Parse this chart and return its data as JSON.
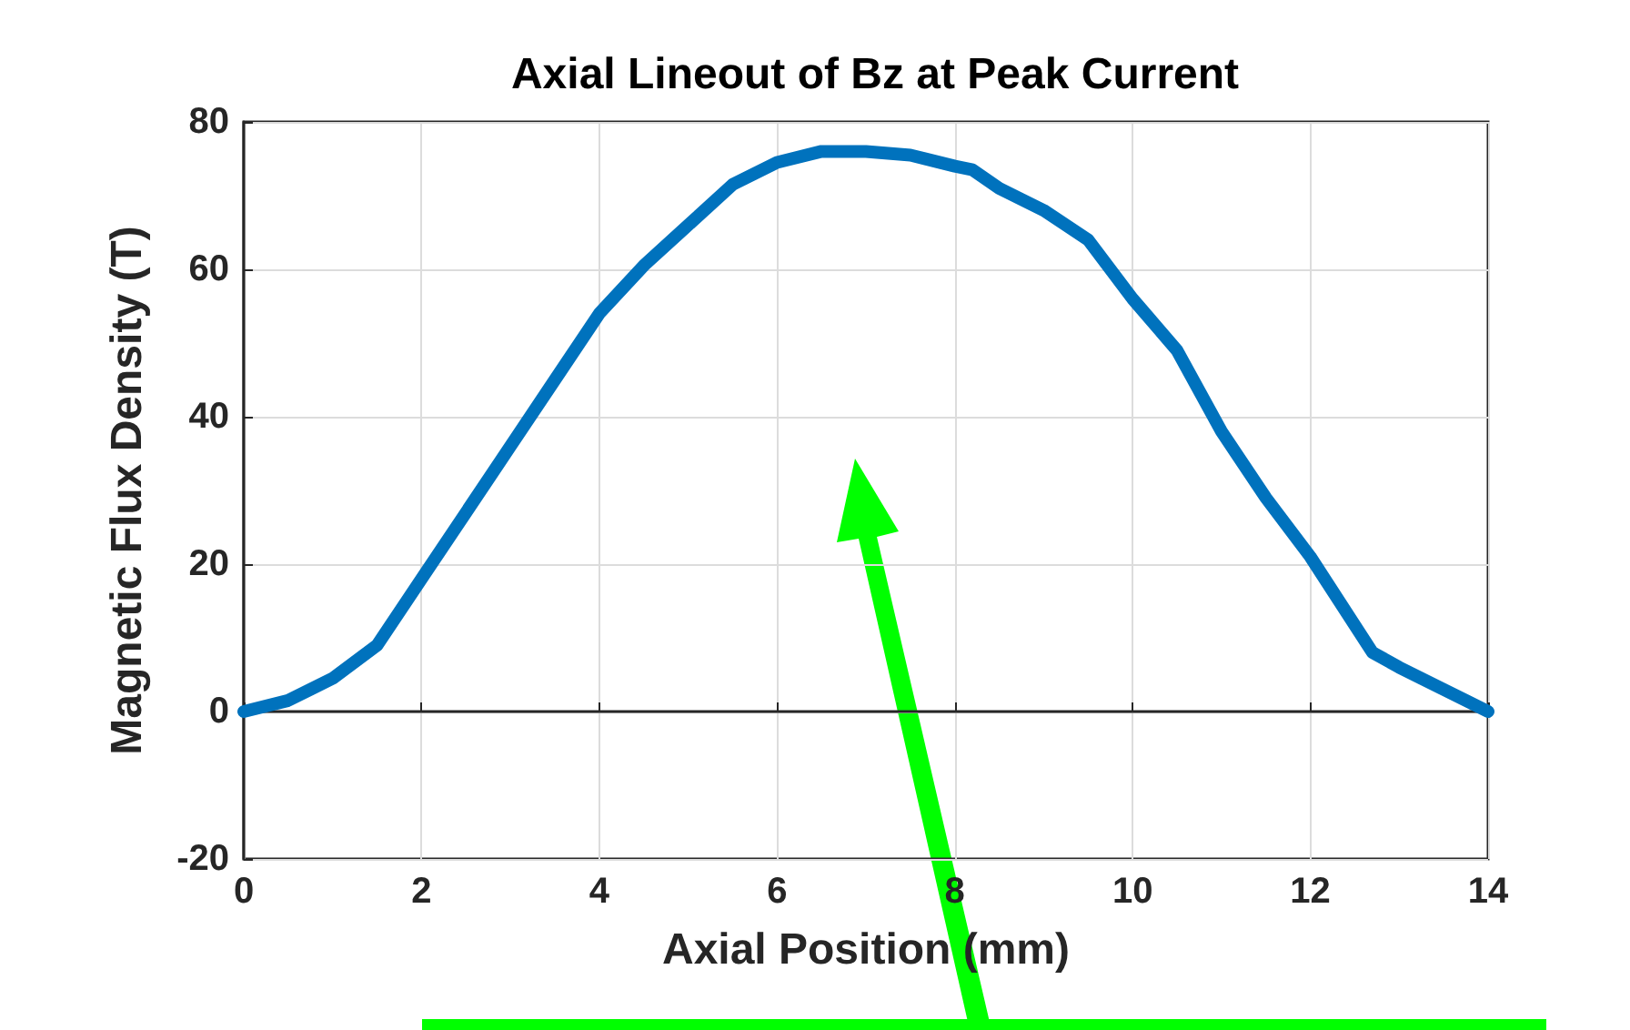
{
  "chart_data": {
    "type": "line",
    "title": "Axial Lineout of Bz at Peak Current",
    "xlabel": "Axial Position (mm)",
    "ylabel": "Magnetic Flux Density (T)",
    "x": [
      0,
      0.5,
      1,
      1.5,
      2,
      2.5,
      3,
      3.5,
      4,
      4.5,
      5,
      5.5,
      6,
      6.5,
      7,
      7.5,
      8,
      8.2,
      8.5,
      9,
      9.5,
      10,
      10.5,
      11,
      11.5,
      12,
      12.7,
      13,
      13.5,
      14
    ],
    "series": [
      {
        "color": "#0072bd",
        "values": [
          0,
          1.5,
          4.5,
          9,
          18,
          27,
          36,
          45,
          54,
          60.5,
          66,
          71.5,
          74.5,
          76,
          76,
          75.5,
          74,
          73.5,
          71,
          68,
          64,
          56,
          49,
          38,
          29,
          21,
          8,
          6,
          3,
          0
        ]
      }
    ],
    "xlim": [
      0,
      14
    ],
    "xticks": [
      0,
      2,
      4,
      6,
      8,
      10,
      12,
      14
    ],
    "ylim": [
      -20,
      80
    ],
    "yticks": [
      -20,
      0,
      20,
      40,
      60,
      80
    ],
    "grid": true,
    "line_style": "solid"
  }
}
